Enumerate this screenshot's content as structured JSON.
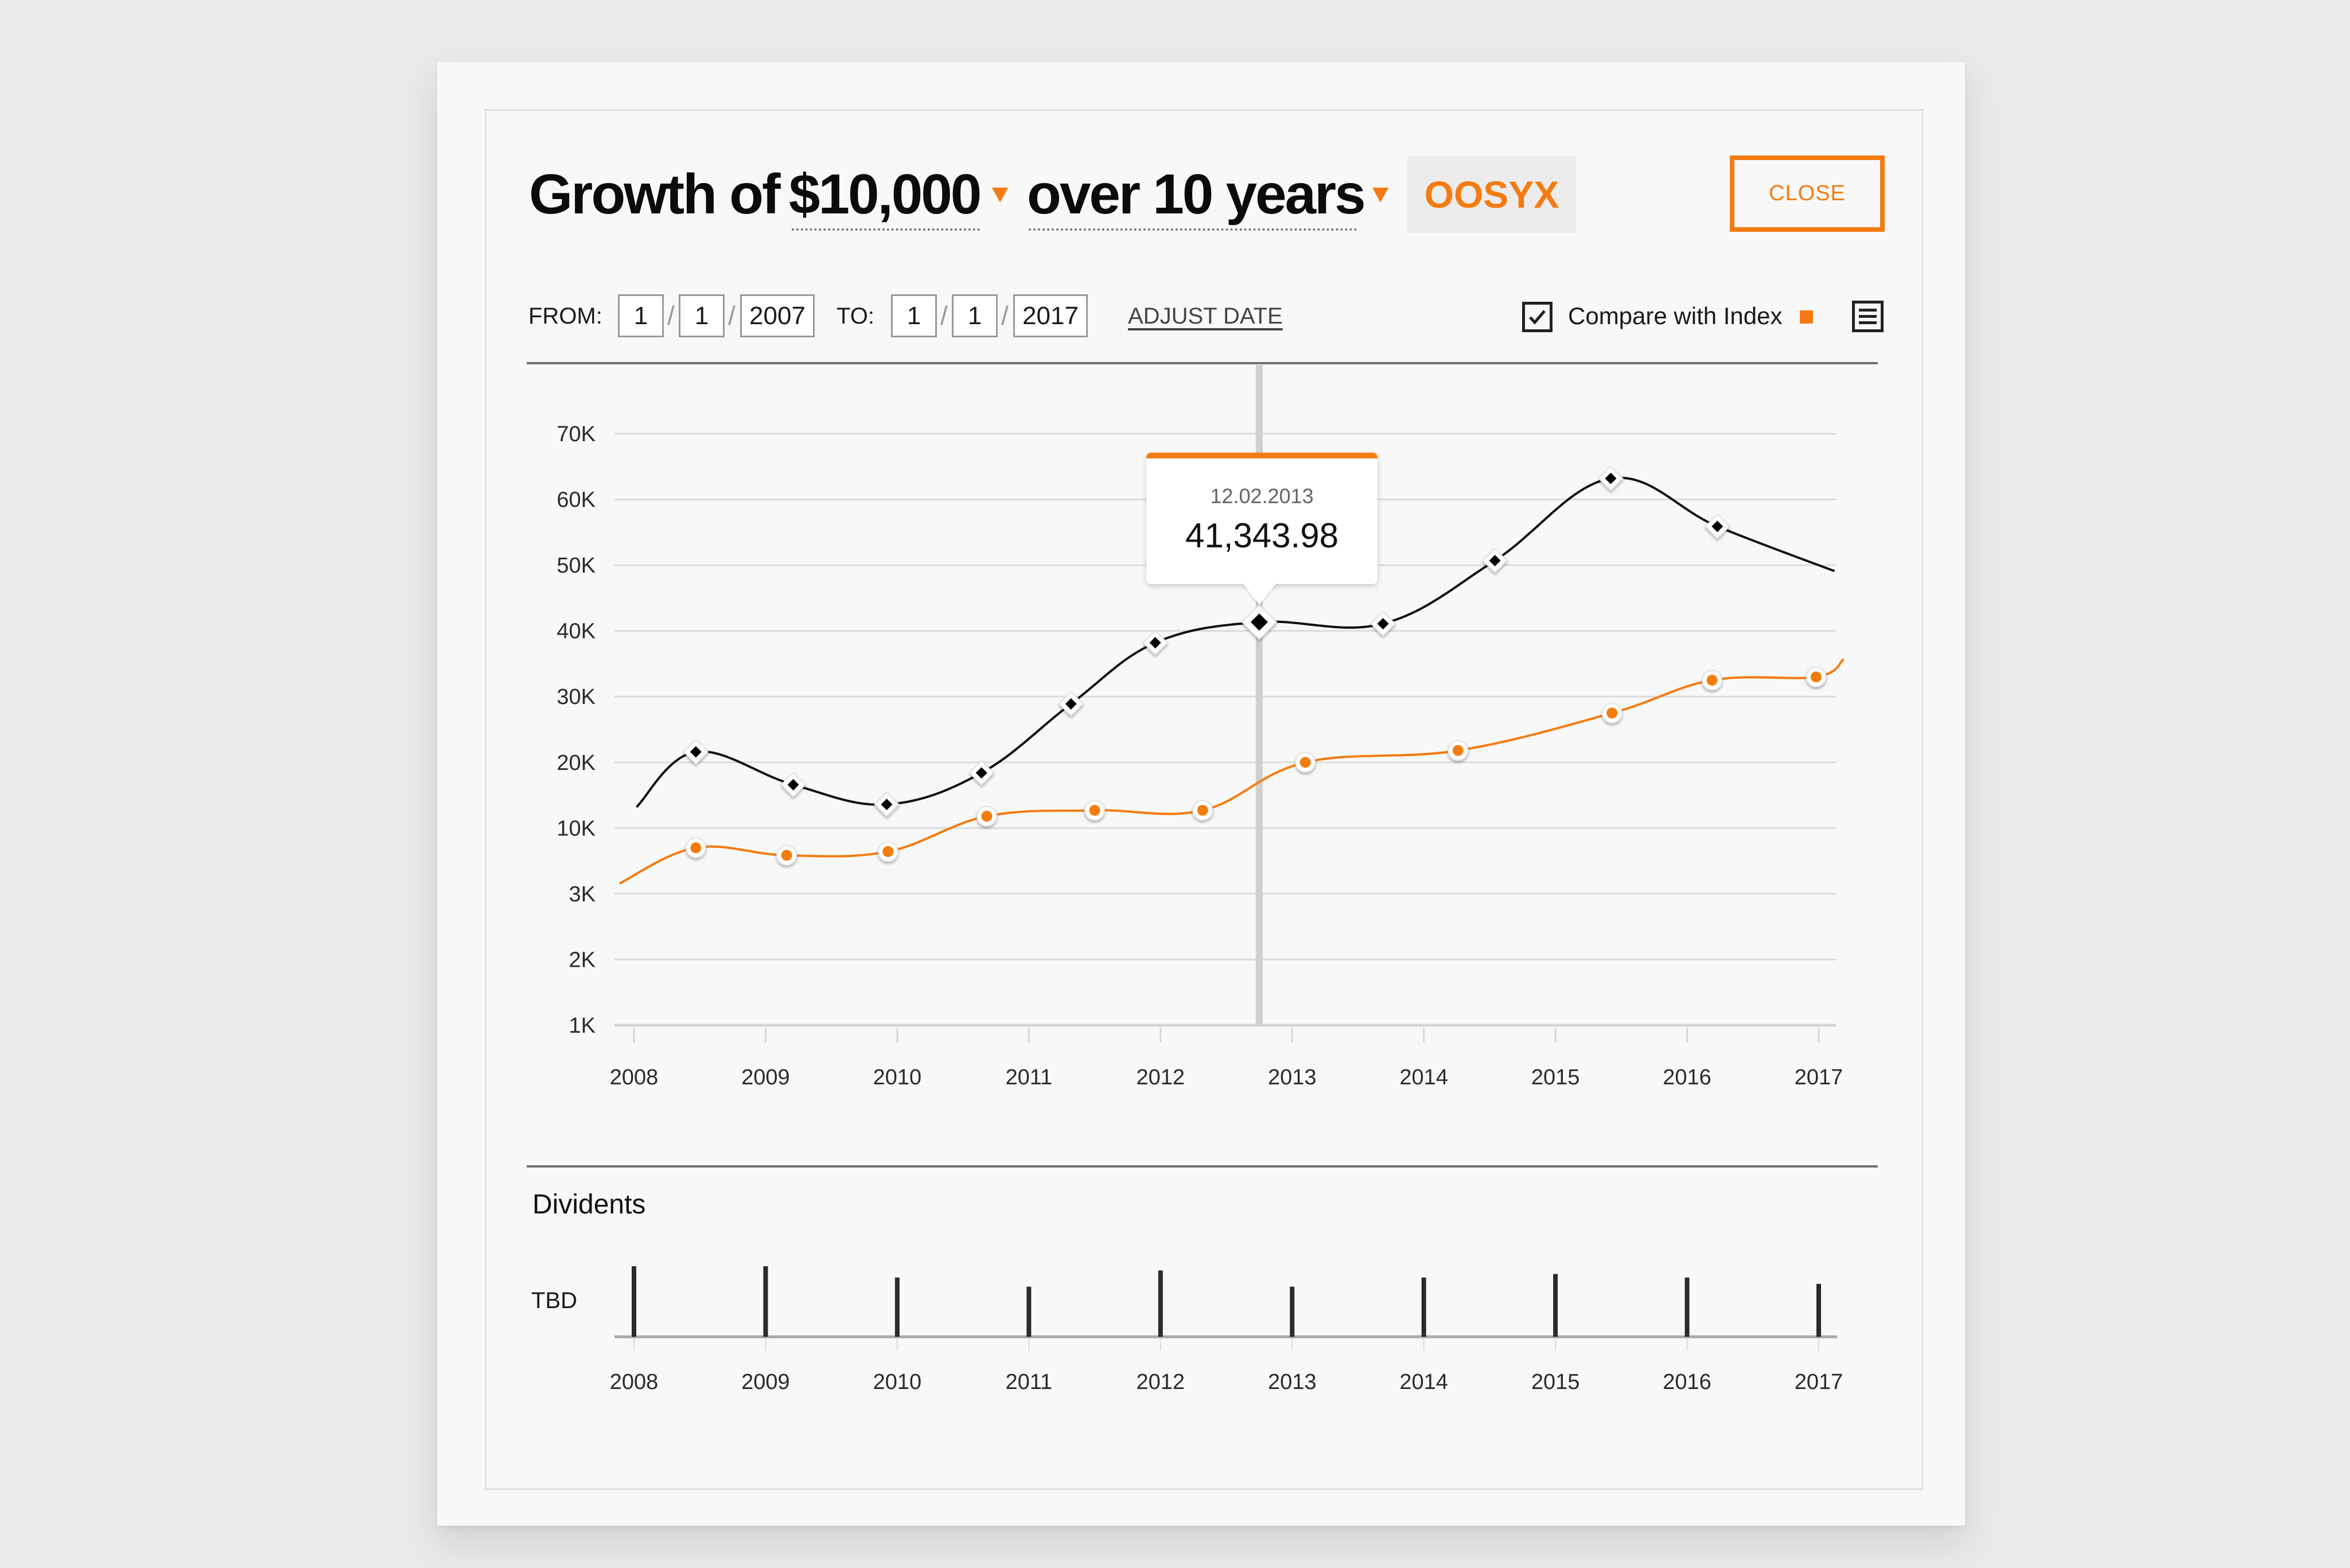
{
  "header": {
    "title_prefix": "Growth of",
    "amount": "$10,000",
    "period": "over 10 years",
    "ticker": "OOSYX",
    "close_label": "CLOSE"
  },
  "date_range": {
    "from_label": "FROM:",
    "from": {
      "month": "1",
      "day": "1",
      "year": "2007"
    },
    "to_label": "TO:",
    "to": {
      "month": "1",
      "day": "1",
      "year": "2017"
    },
    "separator": "/",
    "adjust_label": "ADJUST DATE"
  },
  "legend": {
    "compare_label": "Compare with Index",
    "compare_checked": true,
    "checkbox_icon": "checkmark-icon",
    "menu_icon": "list-icon"
  },
  "colors": {
    "accent": "#f47b11",
    "fund_line": "#111111",
    "index_line": "#f47b11",
    "grid": "#dcdcdc"
  },
  "tooltip": {
    "date": "12.02.2013",
    "value": "41,343.98"
  },
  "chart_data": [
    {
      "type": "line",
      "title": "Growth of $10,000 over 10 years",
      "xlabel": "",
      "ylabel": "",
      "x_ticks": [
        "2008",
        "2009",
        "2010",
        "2011",
        "2012",
        "2013",
        "2014",
        "2015",
        "2016",
        "2017"
      ],
      "xlim": [
        2008,
        2017
      ],
      "y_ticks": [
        "1K",
        "2K",
        "3K",
        "10K",
        "20K",
        "30K",
        "40K",
        "50K",
        "60K",
        "70K"
      ],
      "y_tick_values": [
        1000,
        2000,
        3000,
        10000,
        20000,
        30000,
        40000,
        50000,
        60000,
        70000
      ],
      "y_scale": "categorical-ticks (equally spaced tick labels)",
      "grid": true,
      "crosshair_x": 2012.75,
      "series": [
        {
          "name": "OOSYX",
          "marker": "diamond",
          "curve_start": {
            "x": 2008.02,
            "y": 13200
          },
          "curve_end": {
            "x": 2017.12,
            "y": 49100
          },
          "points": [
            {
              "x": 2008.47,
              "y": 21600
            },
            {
              "x": 2009.21,
              "y": 16600
            },
            {
              "x": 2009.92,
              "y": 13600
            },
            {
              "x": 2010.64,
              "y": 18400
            },
            {
              "x": 2011.32,
              "y": 28900
            },
            {
              "x": 2011.96,
              "y": 38200
            },
            {
              "x": 2012.75,
              "y": 41343.98,
              "highlighted": true
            },
            {
              "x": 2013.69,
              "y": 41100
            },
            {
              "x": 2014.54,
              "y": 50700
            },
            {
              "x": 2015.42,
              "y": 63200
            },
            {
              "x": 2016.23,
              "y": 55900
            }
          ]
        },
        {
          "name": "Index",
          "marker": "circle",
          "curve_start": {
            "x": 2007.89,
            "y": 4100
          },
          "curve_end": {
            "x": 2017.19,
            "y": 35700
          },
          "points": [
            {
              "x": 2008.47,
              "y": 7900
            },
            {
              "x": 2009.16,
              "y": 7100
            },
            {
              "x": 2009.93,
              "y": 7500
            },
            {
              "x": 2010.68,
              "y": 11800
            },
            {
              "x": 2011.5,
              "y": 12700
            },
            {
              "x": 2012.32,
              "y": 12700
            },
            {
              "x": 2013.1,
              "y": 20000
            },
            {
              "x": 2014.26,
              "y": 21800
            },
            {
              "x": 2015.43,
              "y": 27500
            },
            {
              "x": 2016.19,
              "y": 32500
            },
            {
              "x": 2016.98,
              "y": 33000
            }
          ]
        }
      ]
    },
    {
      "type": "bar",
      "title": "Dividents",
      "ylabel": "TBD",
      "categories": [
        "2008",
        "2009",
        "2010",
        "2011",
        "2012",
        "2013",
        "2014",
        "2015",
        "2016",
        "2017"
      ],
      "values_relative": [
        1.0,
        1.0,
        0.84,
        0.71,
        0.94,
        0.71,
        0.84,
        0.89,
        0.84,
        0.75
      ]
    }
  ]
}
